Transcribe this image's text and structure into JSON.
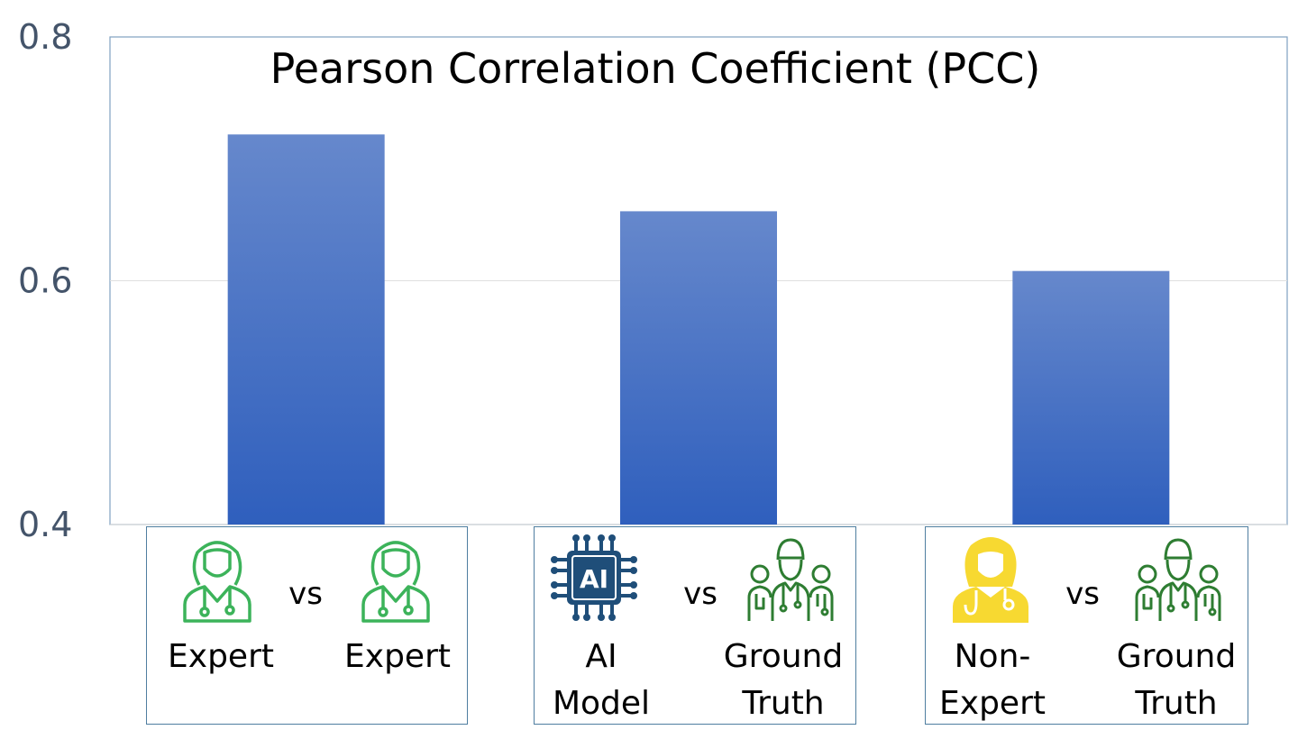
{
  "chart_data": {
    "type": "bar",
    "title": "Pearson Correlation Coefficient (PCC)",
    "categories": [
      "Expert vs Expert",
      "AI Model vs Ground Truth",
      "Non-Expert vs Ground Truth"
    ],
    "values": [
      0.72,
      0.657,
      0.608
    ],
    "ylim": [
      0.4,
      0.8
    ],
    "yticks": [
      "0.4",
      "0.6",
      "0.8"
    ],
    "grid": true,
    "bar_color_top": "#6688cc",
    "bar_color_bottom": "#2f5fbd"
  },
  "categories": [
    {
      "left_icon": "doctor-expert-icon",
      "left_label": "Expert",
      "vs": "vs",
      "right_icon": "doctor-expert-icon",
      "right_label": "Expert"
    },
    {
      "left_icon": "ai-chip-icon",
      "left_label": "AI\nModel",
      "vs": "vs",
      "right_icon": "medical-team-icon",
      "right_label": "Ground\nTruth"
    },
    {
      "left_icon": "non-expert-person-icon",
      "left_label": "Non-\nExpert",
      "vs": "vs",
      "right_icon": "medical-team-icon",
      "right_label": "Ground\nTruth"
    }
  ],
  "colors": {
    "expert_green": "#3cb35a",
    "team_green": "#2e7d32",
    "ai_blue": "#1f4e79",
    "non_expert_yellow": "#f7d931"
  }
}
